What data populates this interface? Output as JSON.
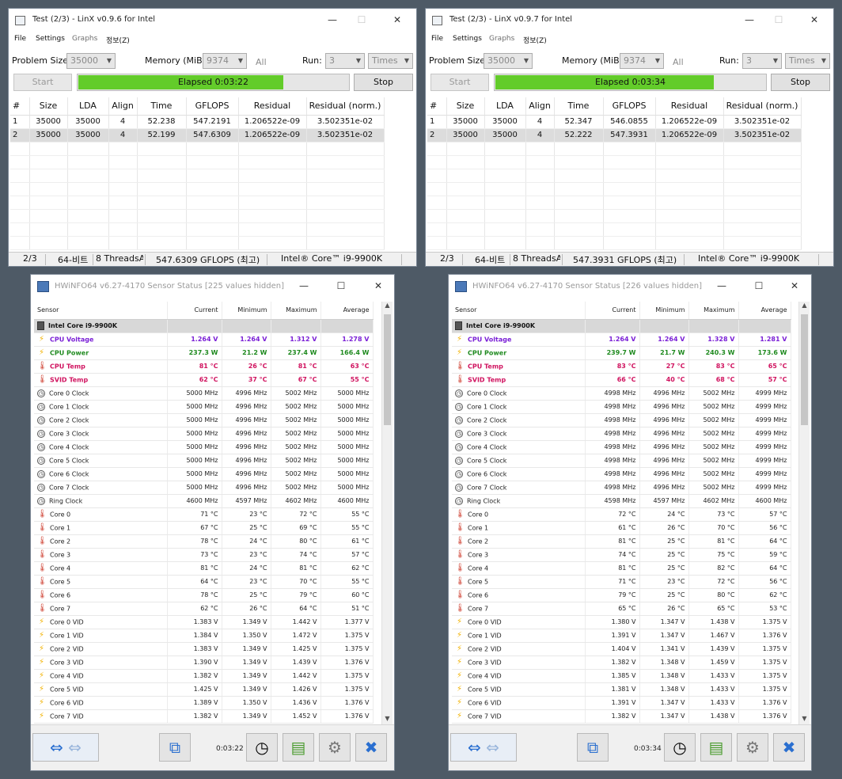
{
  "linx": [
    {
      "title": "Test (2/3) - LinX v0.9.6 for Intel",
      "menu": [
        "File",
        "Settings",
        "Graphs",
        "정보(Z)"
      ],
      "problem_size_label": "Problem Size:",
      "problem_size": "35000",
      "memory_label": "Memory (MiB):",
      "memory": "9374",
      "all_label": "All",
      "run_label": "Run:",
      "run": "3",
      "times": "Times",
      "start": "Start",
      "stop": "Stop",
      "elapsed": "Elapsed 0:03:22",
      "progress": 0.76,
      "headers": [
        "#",
        "Size",
        "LDA",
        "Align",
        "Time",
        "GFLOPS",
        "Residual",
        "Residual (norm.)"
      ],
      "rows": [
        [
          "1",
          "35000",
          "35000",
          "4",
          "52.238",
          "547.2191",
          "1.206522e-09",
          "3.502351e-02"
        ],
        [
          "2",
          "35000",
          "35000",
          "4",
          "52.199",
          "547.6309",
          "1.206522e-09",
          "3.502351e-02"
        ]
      ],
      "status": [
        "2/3",
        "64-비트",
        "8 ThreadsAll",
        "547.6309 GFLOPS (최고)",
        "Intel® Core™ i9-9900K"
      ]
    },
    {
      "title": "Test (2/3) - LinX v0.9.7 for Intel",
      "menu": [
        "File",
        "Settings",
        "Graphs",
        "정보(Z)"
      ],
      "problem_size_label": "Problem Size:",
      "problem_size": "35000",
      "memory_label": "Memory (MiB):",
      "memory": "9374",
      "all_label": "All",
      "run_label": "Run:",
      "run": "3",
      "times": "Times",
      "start": "Start",
      "stop": "Stop",
      "elapsed": "Elapsed 0:03:34",
      "progress": 0.81,
      "headers": [
        "#",
        "Size",
        "LDA",
        "Align",
        "Time",
        "GFLOPS",
        "Residual",
        "Residual (norm.)"
      ],
      "rows": [
        [
          "1",
          "35000",
          "35000",
          "4",
          "52.347",
          "546.0855",
          "1.206522e-09",
          "3.502351e-02"
        ],
        [
          "2",
          "35000",
          "35000",
          "4",
          "52.222",
          "547.3931",
          "1.206522e-09",
          "3.502351e-02"
        ]
      ],
      "status": [
        "2/3",
        "64-비트",
        "8 ThreadsAll",
        "547.3931 GFLOPS (최고)",
        "Intel® Core™ i9-9900K"
      ]
    }
  ],
  "hwinfo": [
    {
      "title": "HWiNFO64 v6.27-4170 Sensor Status [225 values hidden]",
      "headers": [
        "Sensor",
        "Current",
        "Minimum",
        "Maximum",
        "Average"
      ],
      "group": "Intel Core i9-9900K",
      "rows": [
        {
          "icon": "bolt",
          "cls": "v",
          "name": "CPU Voltage",
          "vals": [
            "1.264 V",
            "1.264 V",
            "1.312 V",
            "1.278 V"
          ]
        },
        {
          "icon": "bolt",
          "cls": "p",
          "name": "CPU Power",
          "vals": [
            "237.3 W",
            "21.2 W",
            "237.4 W",
            "166.4 W"
          ]
        },
        {
          "icon": "therm",
          "cls": "t",
          "name": "CPU Temp",
          "vals": [
            "81 °C",
            "26 °C",
            "81 °C",
            "63 °C"
          ]
        },
        {
          "icon": "therm",
          "cls": "t",
          "name": "SVID Temp",
          "vals": [
            "62 °C",
            "37 °C",
            "67 °C",
            "55 °C"
          ]
        },
        {
          "icon": "clock",
          "cls": "",
          "name": "Core 0 Clock",
          "vals": [
            "5000 MHz",
            "4996 MHz",
            "5002 MHz",
            "5000 MHz"
          ]
        },
        {
          "icon": "clock",
          "cls": "",
          "name": "Core 1 Clock",
          "vals": [
            "5000 MHz",
            "4996 MHz",
            "5002 MHz",
            "5000 MHz"
          ]
        },
        {
          "icon": "clock",
          "cls": "",
          "name": "Core 2 Clock",
          "vals": [
            "5000 MHz",
            "4996 MHz",
            "5002 MHz",
            "5000 MHz"
          ]
        },
        {
          "icon": "clock",
          "cls": "",
          "name": "Core 3 Clock",
          "vals": [
            "5000 MHz",
            "4996 MHz",
            "5002 MHz",
            "5000 MHz"
          ]
        },
        {
          "icon": "clock",
          "cls": "",
          "name": "Core 4 Clock",
          "vals": [
            "5000 MHz",
            "4996 MHz",
            "5002 MHz",
            "5000 MHz"
          ]
        },
        {
          "icon": "clock",
          "cls": "",
          "name": "Core 5 Clock",
          "vals": [
            "5000 MHz",
            "4996 MHz",
            "5002 MHz",
            "5000 MHz"
          ]
        },
        {
          "icon": "clock",
          "cls": "",
          "name": "Core 6 Clock",
          "vals": [
            "5000 MHz",
            "4996 MHz",
            "5002 MHz",
            "5000 MHz"
          ]
        },
        {
          "icon": "clock",
          "cls": "",
          "name": "Core 7 Clock",
          "vals": [
            "5000 MHz",
            "4996 MHz",
            "5002 MHz",
            "5000 MHz"
          ]
        },
        {
          "icon": "clock",
          "cls": "",
          "name": "Ring Clock",
          "vals": [
            "4600 MHz",
            "4597 MHz",
            "4602 MHz",
            "4600 MHz"
          ]
        },
        {
          "icon": "therm",
          "cls": "",
          "name": "Core 0",
          "vals": [
            "71 °C",
            "23 °C",
            "72 °C",
            "55 °C"
          ]
        },
        {
          "icon": "therm",
          "cls": "",
          "name": "Core 1",
          "vals": [
            "67 °C",
            "25 °C",
            "69 °C",
            "55 °C"
          ]
        },
        {
          "icon": "therm",
          "cls": "",
          "name": "Core 2",
          "vals": [
            "78 °C",
            "24 °C",
            "80 °C",
            "61 °C"
          ]
        },
        {
          "icon": "therm",
          "cls": "",
          "name": "Core 3",
          "vals": [
            "73 °C",
            "23 °C",
            "74 °C",
            "57 °C"
          ]
        },
        {
          "icon": "therm",
          "cls": "",
          "name": "Core 4",
          "vals": [
            "81 °C",
            "24 °C",
            "81 °C",
            "62 °C"
          ]
        },
        {
          "icon": "therm",
          "cls": "",
          "name": "Core 5",
          "vals": [
            "64 °C",
            "23 °C",
            "70 °C",
            "55 °C"
          ]
        },
        {
          "icon": "therm",
          "cls": "",
          "name": "Core 6",
          "vals": [
            "78 °C",
            "25 °C",
            "79 °C",
            "60 °C"
          ]
        },
        {
          "icon": "therm",
          "cls": "",
          "name": "Core 7",
          "vals": [
            "62 °C",
            "26 °C",
            "64 °C",
            "51 °C"
          ]
        },
        {
          "icon": "bolt",
          "cls": "",
          "name": "Core 0 VID",
          "vals": [
            "1.383 V",
            "1.349 V",
            "1.442 V",
            "1.377 V"
          ]
        },
        {
          "icon": "bolt",
          "cls": "",
          "name": "Core 1 VID",
          "vals": [
            "1.384 V",
            "1.350 V",
            "1.472 V",
            "1.375 V"
          ]
        },
        {
          "icon": "bolt",
          "cls": "",
          "name": "Core 2 VID",
          "vals": [
            "1.383 V",
            "1.349 V",
            "1.425 V",
            "1.375 V"
          ]
        },
        {
          "icon": "bolt",
          "cls": "",
          "name": "Core 3 VID",
          "vals": [
            "1.390 V",
            "1.349 V",
            "1.439 V",
            "1.376 V"
          ]
        },
        {
          "icon": "bolt",
          "cls": "",
          "name": "Core 4 VID",
          "vals": [
            "1.382 V",
            "1.349 V",
            "1.442 V",
            "1.375 V"
          ]
        },
        {
          "icon": "bolt",
          "cls": "",
          "name": "Core 5 VID",
          "vals": [
            "1.425 V",
            "1.349 V",
            "1.426 V",
            "1.375 V"
          ]
        },
        {
          "icon": "bolt",
          "cls": "",
          "name": "Core 6 VID",
          "vals": [
            "1.389 V",
            "1.350 V",
            "1.436 V",
            "1.376 V"
          ]
        },
        {
          "icon": "bolt",
          "cls": "",
          "name": "Core 7 VID",
          "vals": [
            "1.382 V",
            "1.349 V",
            "1.452 V",
            "1.376 V"
          ]
        }
      ],
      "time": "0:03:22"
    },
    {
      "title": "HWiNFO64 v6.27-4170 Sensor Status [226 values hidden]",
      "headers": [
        "Sensor",
        "Current",
        "Minimum",
        "Maximum",
        "Average"
      ],
      "group": "Intel Core i9-9900K",
      "rows": [
        {
          "icon": "bolt",
          "cls": "v",
          "name": "CPU Voltage",
          "vals": [
            "1.264 V",
            "1.264 V",
            "1.328 V",
            "1.281 V"
          ]
        },
        {
          "icon": "bolt",
          "cls": "p",
          "name": "CPU Power",
          "vals": [
            "239.7 W",
            "21.7 W",
            "240.3 W",
            "173.6 W"
          ]
        },
        {
          "icon": "therm",
          "cls": "t",
          "name": "CPU Temp",
          "vals": [
            "83 °C",
            "27 °C",
            "83 °C",
            "65 °C"
          ]
        },
        {
          "icon": "therm",
          "cls": "t",
          "name": "SVID Temp",
          "vals": [
            "66 °C",
            "40 °C",
            "68 °C",
            "57 °C"
          ]
        },
        {
          "icon": "clock",
          "cls": "",
          "name": "Core 0 Clock",
          "vals": [
            "4998 MHz",
            "4996 MHz",
            "5002 MHz",
            "4999 MHz"
          ]
        },
        {
          "icon": "clock",
          "cls": "",
          "name": "Core 1 Clock",
          "vals": [
            "4998 MHz",
            "4996 MHz",
            "5002 MHz",
            "4999 MHz"
          ]
        },
        {
          "icon": "clock",
          "cls": "",
          "name": "Core 2 Clock",
          "vals": [
            "4998 MHz",
            "4996 MHz",
            "5002 MHz",
            "4999 MHz"
          ]
        },
        {
          "icon": "clock",
          "cls": "",
          "name": "Core 3 Clock",
          "vals": [
            "4998 MHz",
            "4996 MHz",
            "5002 MHz",
            "4999 MHz"
          ]
        },
        {
          "icon": "clock",
          "cls": "",
          "name": "Core 4 Clock",
          "vals": [
            "4998 MHz",
            "4996 MHz",
            "5002 MHz",
            "4999 MHz"
          ]
        },
        {
          "icon": "clock",
          "cls": "",
          "name": "Core 5 Clock",
          "vals": [
            "4998 MHz",
            "4996 MHz",
            "5002 MHz",
            "4999 MHz"
          ]
        },
        {
          "icon": "clock",
          "cls": "",
          "name": "Core 6 Clock",
          "vals": [
            "4998 MHz",
            "4996 MHz",
            "5002 MHz",
            "4999 MHz"
          ]
        },
        {
          "icon": "clock",
          "cls": "",
          "name": "Core 7 Clock",
          "vals": [
            "4998 MHz",
            "4996 MHz",
            "5002 MHz",
            "4999 MHz"
          ]
        },
        {
          "icon": "clock",
          "cls": "",
          "name": "Ring Clock",
          "vals": [
            "4598 MHz",
            "4597 MHz",
            "4602 MHz",
            "4600 MHz"
          ]
        },
        {
          "icon": "therm",
          "cls": "",
          "name": "Core 0",
          "vals": [
            "72 °C",
            "24 °C",
            "73 °C",
            "57 °C"
          ]
        },
        {
          "icon": "therm",
          "cls": "",
          "name": "Core 1",
          "vals": [
            "61 °C",
            "26 °C",
            "70 °C",
            "56 °C"
          ]
        },
        {
          "icon": "therm",
          "cls": "",
          "name": "Core 2",
          "vals": [
            "81 °C",
            "25 °C",
            "81 °C",
            "64 °C"
          ]
        },
        {
          "icon": "therm",
          "cls": "",
          "name": "Core 3",
          "vals": [
            "74 °C",
            "25 °C",
            "75 °C",
            "59 °C"
          ]
        },
        {
          "icon": "therm",
          "cls": "",
          "name": "Core 4",
          "vals": [
            "81 °C",
            "25 °C",
            "82 °C",
            "64 °C"
          ]
        },
        {
          "icon": "therm",
          "cls": "",
          "name": "Core 5",
          "vals": [
            "71 °C",
            "23 °C",
            "72 °C",
            "56 °C"
          ]
        },
        {
          "icon": "therm",
          "cls": "",
          "name": "Core 6",
          "vals": [
            "79 °C",
            "25 °C",
            "80 °C",
            "62 °C"
          ]
        },
        {
          "icon": "therm",
          "cls": "",
          "name": "Core 7",
          "vals": [
            "65 °C",
            "26 °C",
            "65 °C",
            "53 °C"
          ]
        },
        {
          "icon": "bolt",
          "cls": "",
          "name": "Core 0 VID",
          "vals": [
            "1.380 V",
            "1.347 V",
            "1.438 V",
            "1.375 V"
          ]
        },
        {
          "icon": "bolt",
          "cls": "",
          "name": "Core 1 VID",
          "vals": [
            "1.391 V",
            "1.347 V",
            "1.467 V",
            "1.376 V"
          ]
        },
        {
          "icon": "bolt",
          "cls": "",
          "name": "Core 2 VID",
          "vals": [
            "1.404 V",
            "1.341 V",
            "1.439 V",
            "1.375 V"
          ]
        },
        {
          "icon": "bolt",
          "cls": "",
          "name": "Core 3 VID",
          "vals": [
            "1.382 V",
            "1.348 V",
            "1.459 V",
            "1.375 V"
          ]
        },
        {
          "icon": "bolt",
          "cls": "",
          "name": "Core 4 VID",
          "vals": [
            "1.385 V",
            "1.348 V",
            "1.433 V",
            "1.375 V"
          ]
        },
        {
          "icon": "bolt",
          "cls": "",
          "name": "Core 5 VID",
          "vals": [
            "1.381 V",
            "1.348 V",
            "1.433 V",
            "1.375 V"
          ]
        },
        {
          "icon": "bolt",
          "cls": "",
          "name": "Core 6 VID",
          "vals": [
            "1.391 V",
            "1.347 V",
            "1.433 V",
            "1.376 V"
          ]
        },
        {
          "icon": "bolt",
          "cls": "",
          "name": "Core 7 VID",
          "vals": [
            "1.382 V",
            "1.347 V",
            "1.438 V",
            "1.376 V"
          ]
        }
      ],
      "time": "0:03:34"
    }
  ],
  "colors": {
    "desktop": "#4e5a66",
    "progress_fill": "#63cc2a",
    "voltage": "#7a1fd6",
    "power": "#1f8a1f",
    "temp": "#d0135f"
  },
  "icons": [
    "linx-app-icon",
    "hwinfo-app-icon",
    "chip-icon",
    "bolt-icon",
    "thermometer-icon",
    "clock-icon",
    "minimize-icon",
    "maximize-icon",
    "close-icon",
    "arrows-icon",
    "network-icon",
    "stopwatch-icon",
    "report-icon",
    "gear-icon",
    "close-x-icon"
  ]
}
